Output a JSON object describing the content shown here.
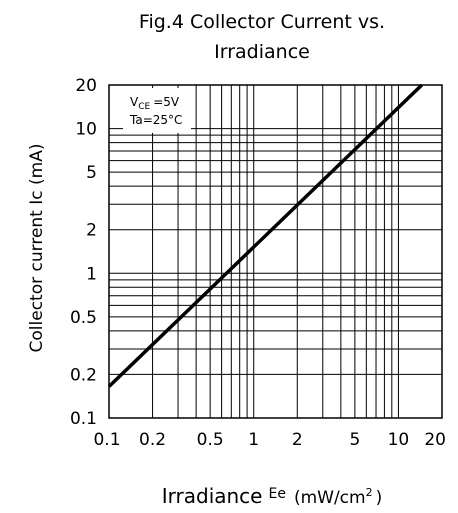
{
  "chart_data": {
    "type": "line",
    "title_line1": "Fig.4  Collector  Current  vs.",
    "title_line2": "Irradiance",
    "xlabel": "Irradiance",
    "xlabel_symbol": "Ee",
    "xlabel_unit_pre": "(mW/cm",
    "xlabel_unit_sup": "2",
    "xlabel_unit_post": ")",
    "ylabel": "Collector  current  Ic  (mA)",
    "x_scale": "log",
    "y_scale": "log",
    "xlim": [
      0.1,
      20
    ],
    "ylim": [
      0.1,
      20
    ],
    "grid": true,
    "x_ticks": [
      "0.1",
      "0.2",
      "0.5",
      "1",
      "2",
      "5",
      "10",
      "20"
    ],
    "x_tick_values": [
      0.1,
      0.2,
      0.5,
      1,
      2,
      5,
      10,
      20
    ],
    "y_ticks": [
      "20",
      "10",
      "5",
      "2",
      "1",
      "0.5",
      "0.2",
      "0.1"
    ],
    "y_tick_values": [
      20,
      10,
      5,
      2,
      1,
      0.5,
      0.2,
      0.1
    ],
    "annotation_line1_main": "V",
    "annotation_line1_sub": "CE",
    "annotation_line1_rest": "=5V",
    "annotation_line2": "Ta=25°C",
    "series": [
      {
        "x": [
          0.1,
          14.5
        ],
        "y": [
          0.165,
          20
        ]
      }
    ]
  }
}
